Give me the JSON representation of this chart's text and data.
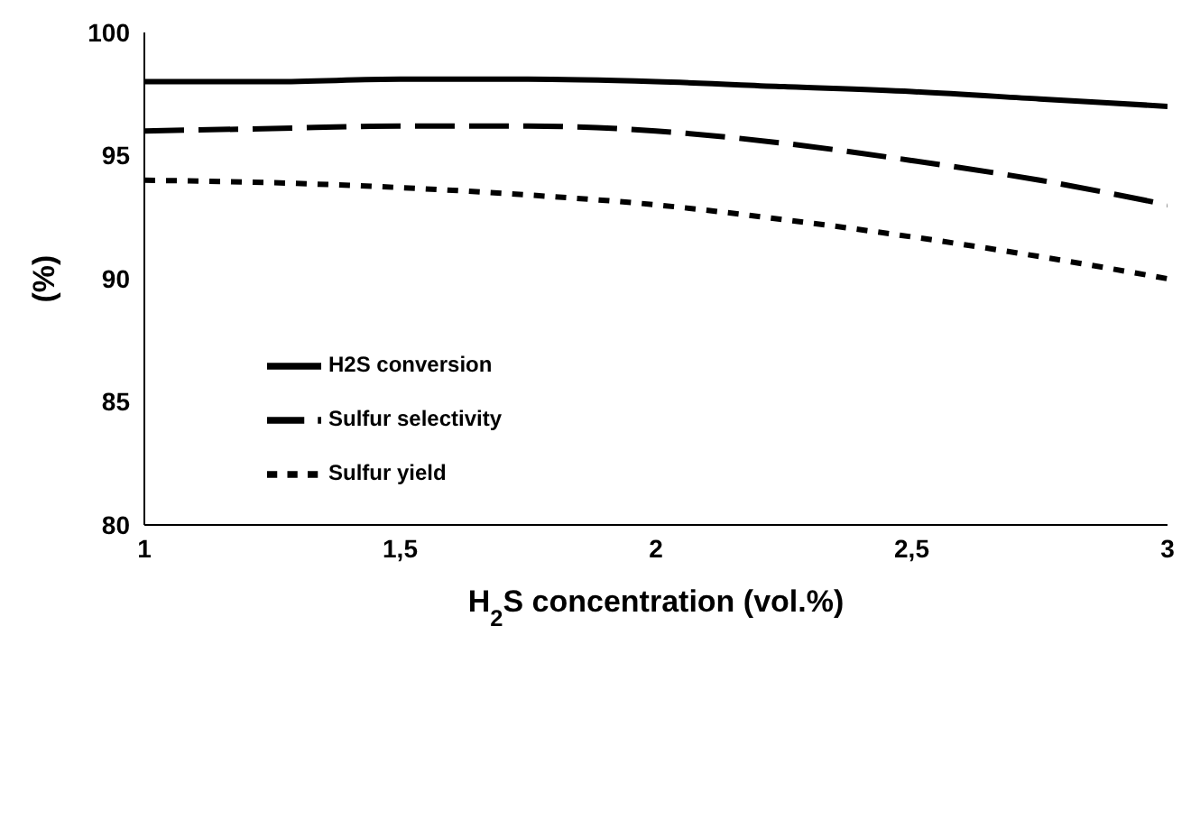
{
  "chart_data": {
    "type": "line",
    "xlabel": "H$_{2}$S concentration (vol.%)",
    "ylabel": "(%)",
    "x": [
      1,
      1.25,
      1.5,
      1.75,
      2,
      2.25,
      2.5,
      2.75,
      3
    ],
    "series": [
      {
        "name": "H2S conversion",
        "color": "#000000",
        "line_style": "solid",
        "values": [
          98,
          98,
          98.1,
          98.1,
          98,
          97.8,
          97.6,
          97.3,
          97
        ]
      },
      {
        "name": "Sulfur selectivity",
        "color": "#000000",
        "line_style": "dashed",
        "values": [
          96,
          96.1,
          96.2,
          96.2,
          96,
          95.5,
          94.8,
          94,
          93
        ]
      },
      {
        "name": "Sulfur yield",
        "color": "#000000",
        "line_style": "dotted",
        "values": [
          94,
          93.9,
          93.7,
          93.4,
          93,
          92.4,
          91.7,
          90.9,
          90
        ]
      }
    ],
    "xlim": [
      1,
      3
    ],
    "xticks": [
      1,
      {
        "value": 1.5,
        "label": "1,5"
      },
      2,
      {
        "value": 2.5,
        "label": "2,5"
      },
      3
    ],
    "ylim": [
      80,
      100
    ],
    "yticks": [
      80,
      85,
      90,
      95,
      100
    ],
    "grid": false,
    "legend": "bottom left",
    "marker": "none"
  }
}
